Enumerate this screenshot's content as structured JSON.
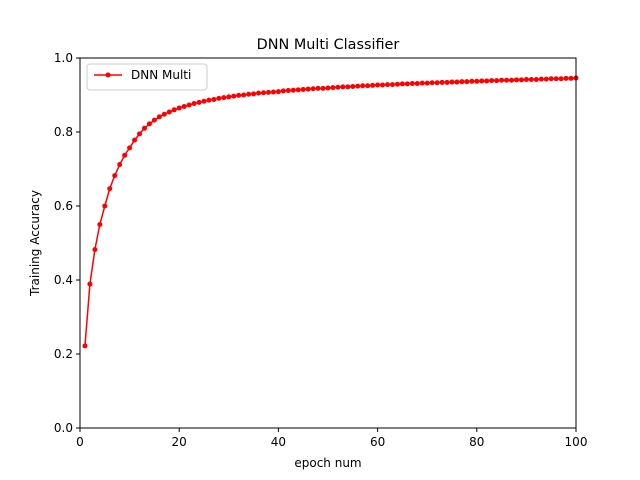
{
  "chart_data": {
    "type": "line",
    "title": "DNN Multi Classifier",
    "xlabel": "epoch num",
    "ylabel": "Training Accuracy",
    "xlim": [
      0,
      100
    ],
    "ylim": [
      0.0,
      1.0
    ],
    "xticks": [
      "0",
      "20",
      "40",
      "60",
      "80",
      "100"
    ],
    "yticks": [
      "0.0",
      "0.2",
      "0.4",
      "0.6",
      "0.8",
      "1.0"
    ],
    "grid": false,
    "legend_position": "top-left",
    "series": [
      {
        "name": "DNN Multi",
        "color": "#ff0000",
        "marker": "circle",
        "x": [
          1,
          2,
          3,
          4,
          5,
          6,
          7,
          8,
          9,
          10,
          11,
          12,
          13,
          14,
          15,
          16,
          17,
          18,
          19,
          20,
          21,
          22,
          23,
          24,
          25,
          26,
          27,
          28,
          29,
          30,
          31,
          32,
          33,
          34,
          35,
          36,
          37,
          38,
          39,
          40,
          41,
          42,
          43,
          44,
          45,
          46,
          47,
          48,
          49,
          50,
          51,
          52,
          53,
          54,
          55,
          56,
          57,
          58,
          59,
          60,
          61,
          62,
          63,
          64,
          65,
          66,
          67,
          68,
          69,
          70,
          71,
          72,
          73,
          74,
          75,
          76,
          77,
          78,
          79,
          80,
          81,
          82,
          83,
          84,
          85,
          86,
          87,
          88,
          89,
          90,
          91,
          92,
          93,
          94,
          95,
          96,
          97,
          98,
          99,
          100
        ],
        "values": [
          0.222,
          0.389,
          0.482,
          0.55,
          0.6,
          0.647,
          0.682,
          0.712,
          0.737,
          0.757,
          0.778,
          0.795,
          0.81,
          0.822,
          0.832,
          0.841,
          0.848,
          0.854,
          0.86,
          0.865,
          0.869,
          0.873,
          0.877,
          0.88,
          0.883,
          0.886,
          0.888,
          0.891,
          0.893,
          0.895,
          0.897,
          0.899,
          0.9,
          0.902,
          0.903,
          0.905,
          0.906,
          0.907,
          0.908,
          0.909,
          0.911,
          0.912,
          0.913,
          0.914,
          0.915,
          0.916,
          0.917,
          0.918,
          0.918,
          0.919,
          0.92,
          0.921,
          0.922,
          0.922,
          0.923,
          0.924,
          0.925,
          0.925,
          0.926,
          0.927,
          0.927,
          0.928,
          0.928,
          0.929,
          0.93,
          0.93,
          0.931,
          0.931,
          0.932,
          0.932,
          0.933,
          0.933,
          0.934,
          0.934,
          0.935,
          0.935,
          0.936,
          0.936,
          0.937,
          0.937,
          0.938,
          0.938,
          0.939,
          0.939,
          0.94,
          0.94,
          0.94,
          0.941,
          0.941,
          0.942,
          0.942,
          0.942,
          0.943,
          0.943,
          0.944,
          0.944,
          0.944,
          0.945,
          0.945,
          0.946
        ]
      }
    ]
  }
}
